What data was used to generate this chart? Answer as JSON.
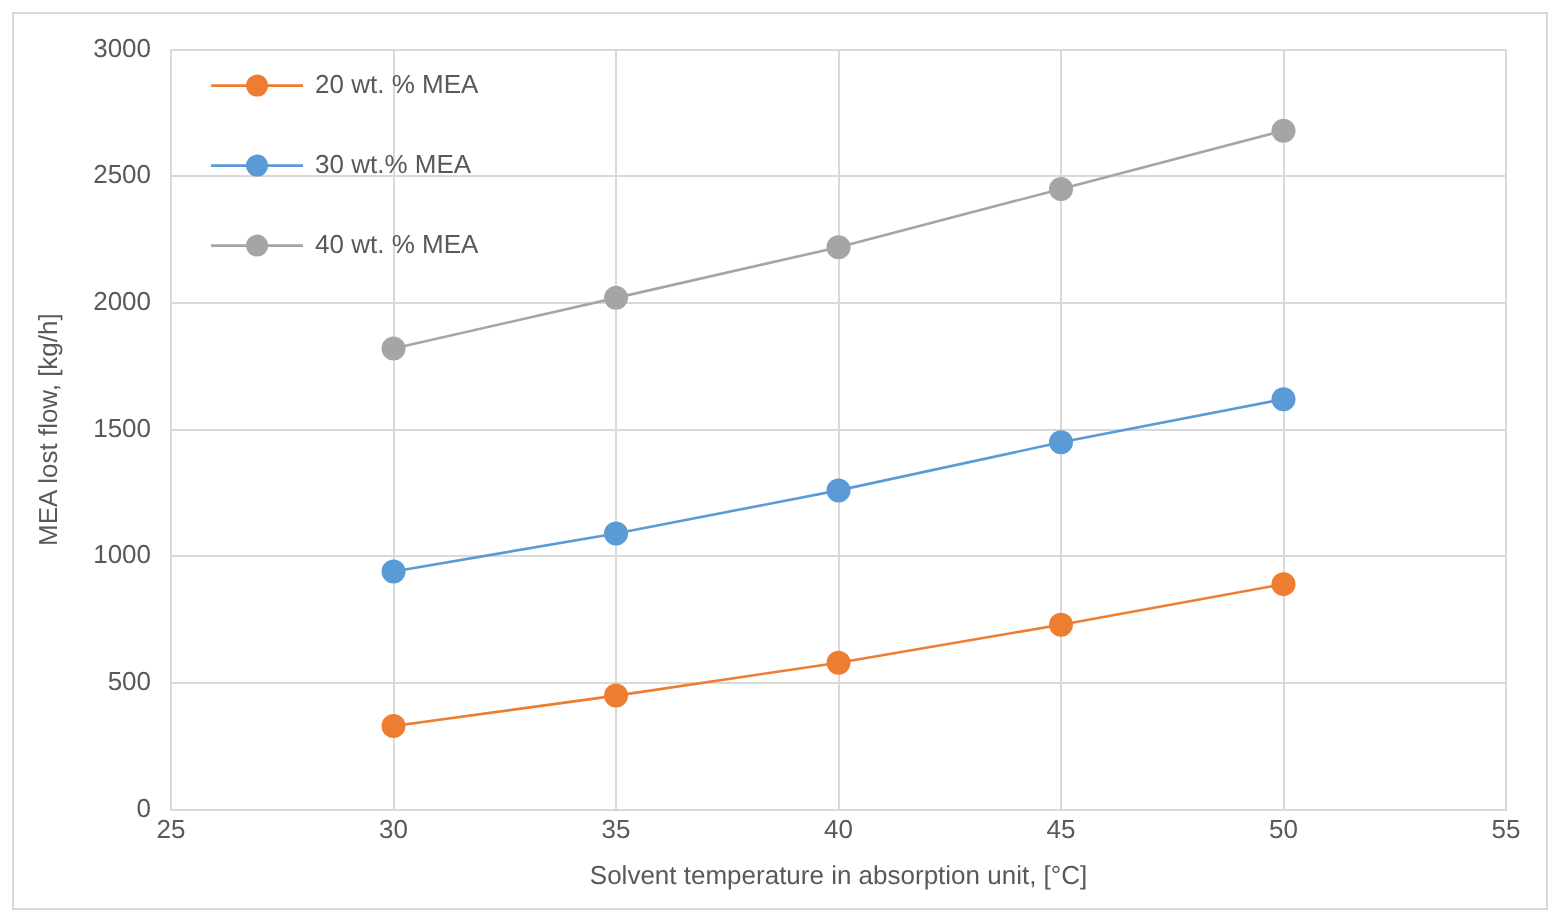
{
  "chart_data": {
    "type": "line",
    "xlabel": "Solvent temperature in absorption unit, [°C]",
    "ylabel": "MEA lost flow, [kg/h]",
    "x": [
      30,
      35,
      40,
      45,
      50
    ],
    "series": [
      {
        "name": "20 wt. % MEA",
        "color": "#ed7d31",
        "values": [
          330,
          450,
          580,
          730,
          890
        ]
      },
      {
        "name": "30 wt.% MEA",
        "color": "#5b9bd5",
        "values": [
          940,
          1090,
          1260,
          1450,
          1620
        ]
      },
      {
        "name": "40 wt. % MEA",
        "color": "#a5a5a5",
        "values": [
          1820,
          2020,
          2220,
          2450,
          2680
        ]
      }
    ],
    "xlim": [
      25,
      55
    ],
    "xticks": [
      25,
      30,
      35,
      40,
      45,
      50,
      55
    ],
    "ylim": [
      0,
      3000
    ],
    "yticks": [
      0,
      500,
      1000,
      1500,
      2000,
      2500,
      3000
    ],
    "grid": true,
    "legend": "top left",
    "marker": "circle",
    "line_style": "solid"
  }
}
